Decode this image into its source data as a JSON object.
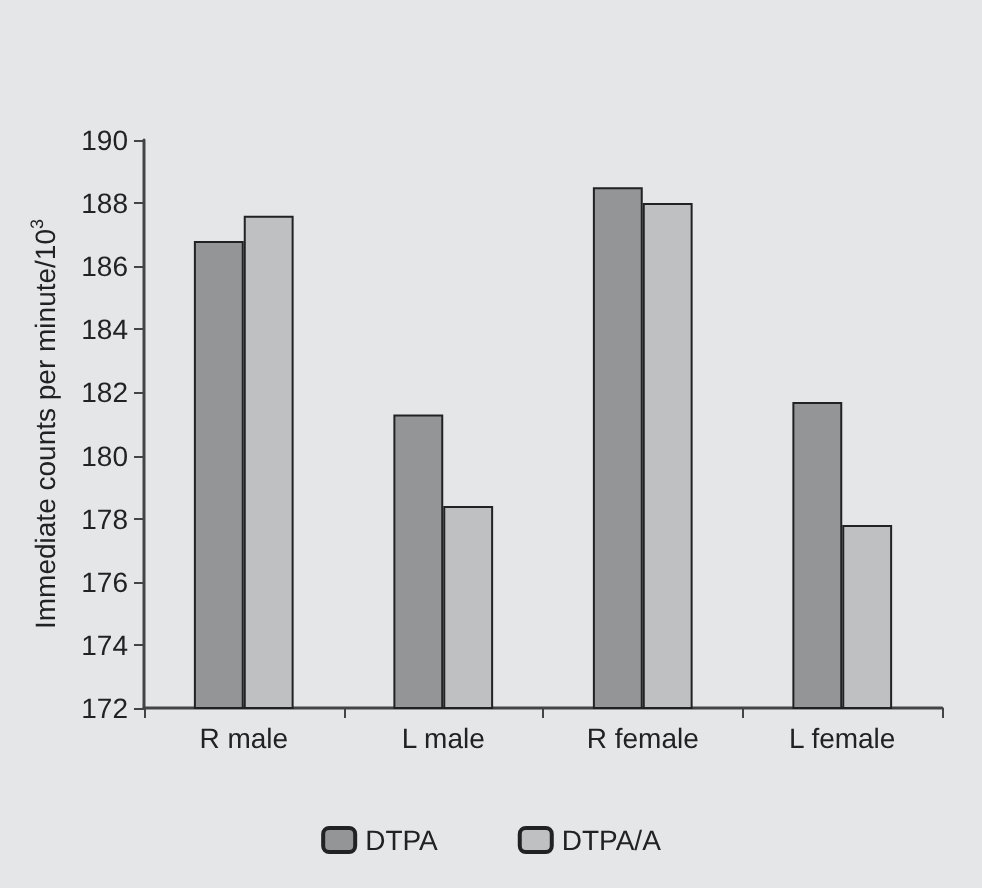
{
  "chart_data": {
    "type": "bar",
    "ylabel": "Immediate counts per minute/10$^{3}$",
    "categories": [
      "R male",
      "L male",
      "R female",
      "L female"
    ],
    "series": [
      {
        "name": "DTPA",
        "color": "#939597",
        "values": [
          186.8,
          181.3,
          188.5,
          181.7
        ]
      },
      {
        "name": "DTPA/A",
        "color": "#bfc0c2",
        "values": [
          187.6,
          178.4,
          188.0,
          177.8
        ]
      }
    ],
    "ylim": [
      172,
      190
    ],
    "yticks": [
      172,
      174,
      176,
      178,
      180,
      182,
      184,
      186,
      188,
      190
    ],
    "grid": false,
    "legend": "bottom"
  }
}
